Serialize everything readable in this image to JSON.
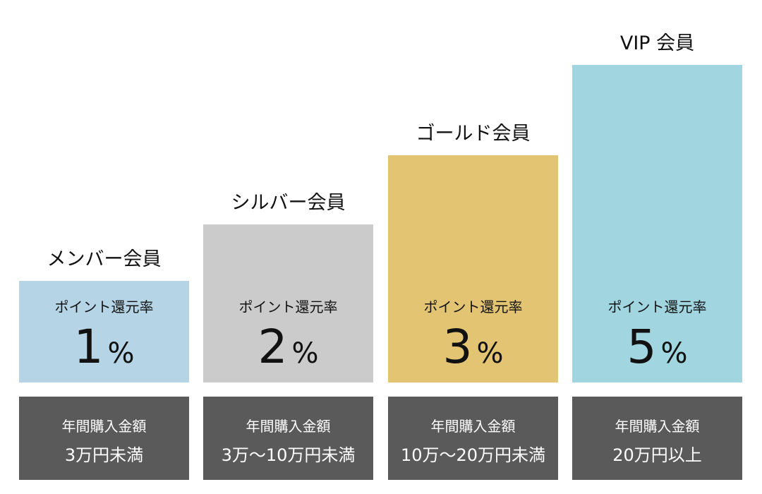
{
  "tiers": [
    {
      "name": "メンバー会員",
      "rate_label": "ポイント還元率",
      "rate": "1",
      "unit": "%",
      "amount_label": "年間購入金額",
      "amount": "3万円未満",
      "color": "#b5d5e6"
    },
    {
      "name": "シルバー会員",
      "rate_label": "ポイント還元率",
      "rate": "2",
      "unit": "%",
      "amount_label": "年間購入金額",
      "amount": "3万～10万円未満",
      "color": "#cbcbcb"
    },
    {
      "name": "ゴールド会員",
      "rate_label": "ポイント還元率",
      "rate": "3",
      "unit": "%",
      "amount_label": "年間購入金額",
      "amount": "10万～20万円未満",
      "color": "#e3c472"
    },
    {
      "name": "VIP 会員",
      "rate_label": "ポイント還元率",
      "rate": "5",
      "unit": "%",
      "amount_label": "年間購入金額",
      "amount": "20万円以上",
      "color": "#a1d6e1"
    }
  ]
}
